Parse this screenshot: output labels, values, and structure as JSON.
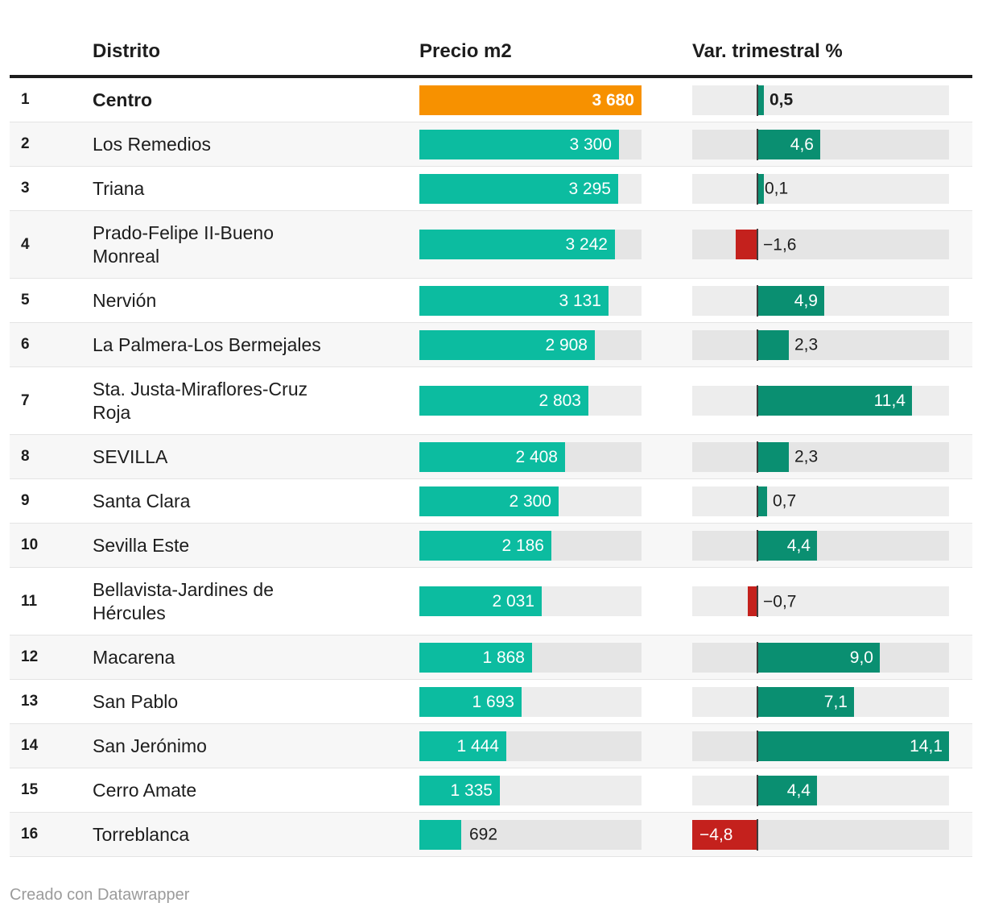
{
  "header": {
    "district": "Distrito",
    "price": "Precio m2",
    "variation": "Var. trimestral %"
  },
  "footer": {
    "credit": "Creado con Datawrapper"
  },
  "colors": {
    "highlight_bar": "#f79100",
    "price_bar": "#0cbca0",
    "var_positive": "#0a8f71",
    "var_negative": "#c4211d",
    "track": "#e9e9e9",
    "row_alt": "#f7f7f7",
    "rule": "#1d1d1d",
    "zero_line": "#3d3d3d",
    "text": "#1d1d1d",
    "credit_text": "#9b9b9b"
  },
  "chart_data": {
    "type": "table",
    "columns": [
      "Distrito",
      "Precio m2",
      "Var. trimestral %"
    ],
    "price_axis": {
      "min": 0,
      "max": 3680
    },
    "var_axis": {
      "min": -4.8,
      "max": 14.1,
      "zero_line": true
    },
    "rows": [
      {
        "rank": "1",
        "district": "Centro",
        "price": 3680,
        "price_label": "3 680",
        "variation": 0.5,
        "variation_label": "0,5",
        "highlight": true
      },
      {
        "rank": "2",
        "district": "Los Remedios",
        "price": 3300,
        "price_label": "3 300",
        "variation": 4.6,
        "variation_label": "4,6",
        "highlight": false
      },
      {
        "rank": "3",
        "district": "Triana",
        "price": 3295,
        "price_label": "3 295",
        "variation": 0.1,
        "variation_label": "0,1",
        "highlight": false
      },
      {
        "rank": "4",
        "district": "Prado-Felipe II-Bueno Monreal",
        "price": 3242,
        "price_label": "3 242",
        "variation": -1.6,
        "variation_label": "−1,6",
        "highlight": false
      },
      {
        "rank": "5",
        "district": "Nervión",
        "price": 3131,
        "price_label": "3 131",
        "variation": 4.9,
        "variation_label": "4,9",
        "highlight": false
      },
      {
        "rank": "6",
        "district": "La Palmera-Los Bermejales",
        "price": 2908,
        "price_label": "2 908",
        "variation": 2.3,
        "variation_label": "2,3",
        "highlight": false
      },
      {
        "rank": "7",
        "district": "Sta. Justa-Miraflores-Cruz Roja",
        "price": 2803,
        "price_label": "2 803",
        "variation": 11.4,
        "variation_label": "11,4",
        "highlight": false
      },
      {
        "rank": "8",
        "district": "SEVILLA",
        "price": 2408,
        "price_label": "2 408",
        "variation": 2.3,
        "variation_label": "2,3",
        "highlight": false
      },
      {
        "rank": "9",
        "district": "Santa Clara",
        "price": 2300,
        "price_label": "2 300",
        "variation": 0.7,
        "variation_label": "0,7",
        "highlight": false
      },
      {
        "rank": "10",
        "district": "Sevilla Este",
        "price": 2186,
        "price_label": "2 186",
        "variation": 4.4,
        "variation_label": "4,4",
        "highlight": false
      },
      {
        "rank": "11",
        "district": "Bellavista-Jardines de Hércules",
        "price": 2031,
        "price_label": "2 031",
        "variation": -0.7,
        "variation_label": "−0,7",
        "highlight": false
      },
      {
        "rank": "12",
        "district": "Macarena",
        "price": 1868,
        "price_label": "1 868",
        "variation": 9.0,
        "variation_label": "9,0",
        "highlight": false
      },
      {
        "rank": "13",
        "district": "San Pablo",
        "price": 1693,
        "price_label": "1 693",
        "variation": 7.1,
        "variation_label": "7,1",
        "highlight": false
      },
      {
        "rank": "14",
        "district": "San Jerónimo",
        "price": 1444,
        "price_label": "1 444",
        "variation": 14.1,
        "variation_label": "14,1",
        "highlight": false
      },
      {
        "rank": "15",
        "district": "Cerro Amate",
        "price": 1335,
        "price_label": "1 335",
        "variation": 4.4,
        "variation_label": "4,4",
        "highlight": false
      },
      {
        "rank": "16",
        "district": "Torreblanca",
        "price": 692,
        "price_label": "692",
        "variation": -4.8,
        "variation_label": "−4,8",
        "highlight": false
      }
    ]
  }
}
